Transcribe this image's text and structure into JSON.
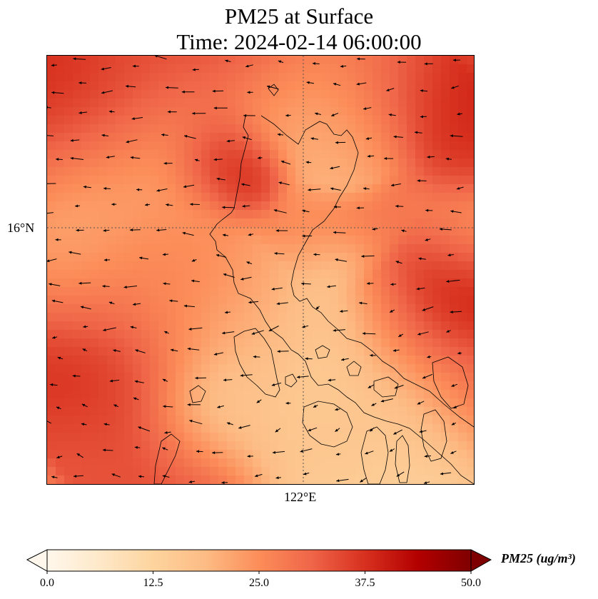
{
  "title": {
    "line1": "PM25 at Surface",
    "line2": "Time: 2024-02-14 06:00:00"
  },
  "axes": {
    "lat_tick": "16°N",
    "lon_tick": "122°E",
    "gridlines": "dotted"
  },
  "colorbar": {
    "label": "PM25 (ug/m³)",
    "ticks": [
      "0.0",
      "12.5",
      "25.0",
      "37.5",
      "50.0"
    ],
    "range": [
      0,
      50
    ],
    "extend": "both",
    "colormap": "OrRd",
    "colors": [
      "#fff7ec",
      "#fee8c8",
      "#fdd49e",
      "#fdbb84",
      "#fc8d59",
      "#ef6548",
      "#d7301f",
      "#b30000",
      "#7f0000"
    ]
  },
  "map": {
    "field": "PM25",
    "units": "ug/m3",
    "coastline_color": "#000000",
    "wind_vectors": true
  }
}
